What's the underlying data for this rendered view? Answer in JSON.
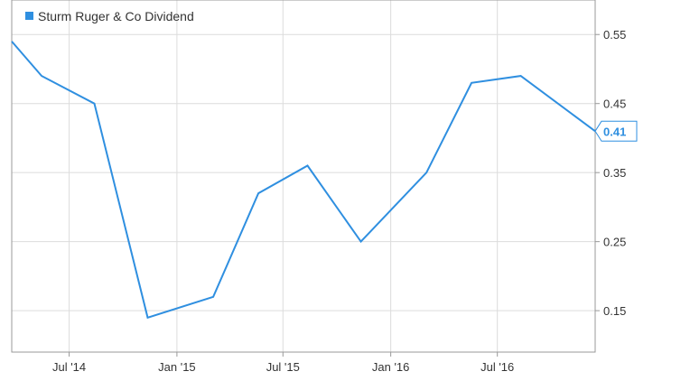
{
  "chart_data": {
    "type": "line",
    "title": "",
    "xlabel": "",
    "ylabel": "",
    "legend": {
      "position": "top-left",
      "entries": [
        "Sturm Ruger & Co Dividend"
      ]
    },
    "grid": true,
    "x_ticks": [
      "Jul '14",
      "Jan '15",
      "Jul '15",
      "Jan '16",
      "Jul '16"
    ],
    "y_ticks": [
      "0.55",
      "0.45",
      "0.35",
      "0.25",
      "0.15"
    ],
    "ylim": [
      0.09,
      0.6
    ],
    "xlim": [
      "2014-03-25",
      "2016-12-15"
    ],
    "series": [
      {
        "name": "Sturm Ruger & Co Dividend",
        "color": "#2f8fe0",
        "x": [
          "2014-03-25",
          "2014-05-15",
          "2014-08-13",
          "2014-11-12",
          "2015-03-04",
          "2015-05-20",
          "2015-08-12",
          "2015-11-11",
          "2016-03-02",
          "2016-05-18",
          "2016-08-10",
          "2016-12-15"
        ],
        "y": [
          0.54,
          0.49,
          0.45,
          0.14,
          0.17,
          0.32,
          0.36,
          0.25,
          0.35,
          0.48,
          0.49,
          0.41
        ]
      }
    ],
    "last_value_label": "0.41"
  }
}
